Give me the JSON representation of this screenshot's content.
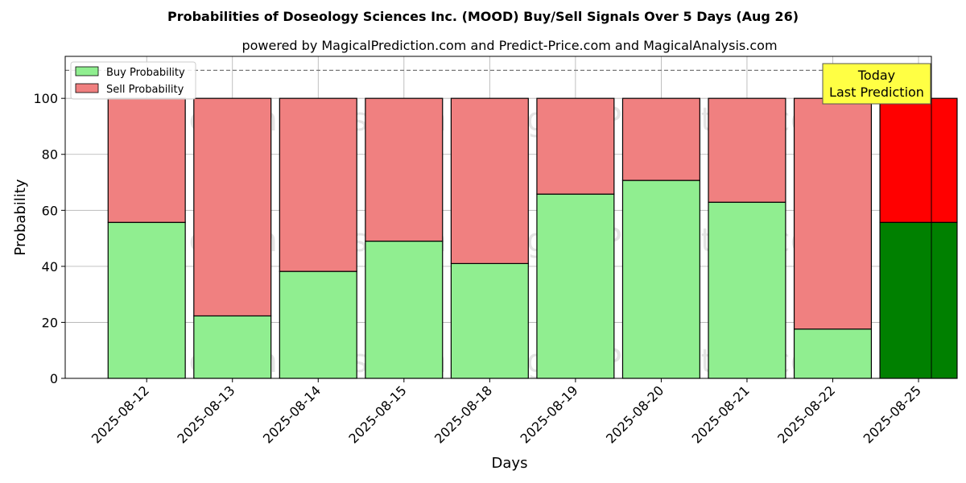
{
  "chart_data": {
    "type": "bar",
    "stacked": true,
    "title": "Probabilities of Doseology Sciences Inc. (MOOD) Buy/Sell Signals Over 5 Days (Aug 26)",
    "subtitle": "powered by MagicalPrediction.com and Predict-Price.com and MagicalAnalysis.com",
    "xlabel": "Days",
    "ylabel": "Probability",
    "ylim": [
      0,
      115
    ],
    "yticks": [
      0,
      20,
      40,
      60,
      80,
      100
    ],
    "reference_line": 110,
    "categories": [
      "2025-08-12",
      "2025-08-13",
      "2025-08-14",
      "2025-08-15",
      "2025-08-18",
      "2025-08-19",
      "2025-08-20",
      "2025-08-21",
      "2025-08-22",
      "2025-08-25"
    ],
    "series": [
      {
        "name": "Buy Probability",
        "values": [
          55.7,
          22.3,
          38.2,
          49.0,
          41.0,
          65.8,
          70.7,
          62.9,
          17.6,
          55.7
        ],
        "color": "#90ee90",
        "highlight_color": "#008000"
      },
      {
        "name": "Sell Probability",
        "values": [
          44.3,
          77.7,
          61.8,
          51.0,
          59.0,
          34.2,
          29.3,
          37.1,
          82.4,
          44.3
        ],
        "color": "#f08080",
        "highlight_color": "#ff0000"
      }
    ],
    "highlight_index": 9,
    "legend_position": "top-left",
    "grid": true,
    "annotation": {
      "line1": "Today",
      "line2": "Last Prediction",
      "background": "#ffff44"
    },
    "watermarks": [
      "MagicalAnalysis.com",
      "MagicalPrediction.com"
    ]
  }
}
